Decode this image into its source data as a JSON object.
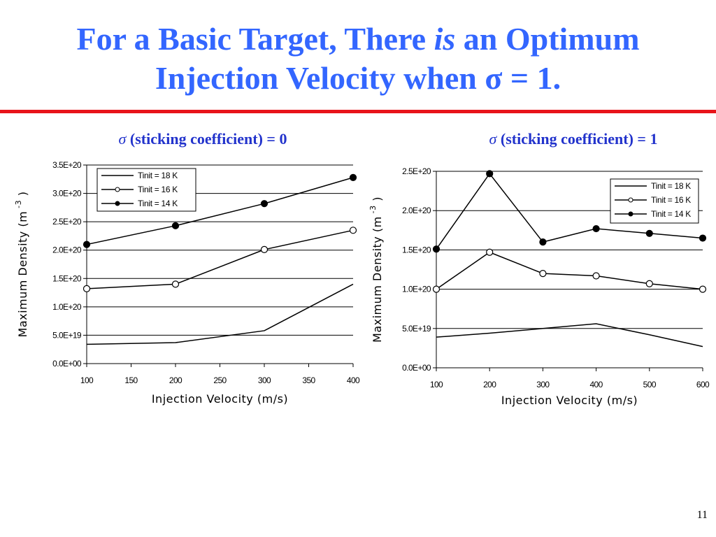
{
  "slide": {
    "title_line1_part1": "For a Basic Target, There ",
    "title_line1_italic": "is",
    "title_line1_part2": " an Optimum",
    "title_line2": "Injection Velocity when σ = 1.",
    "page_number": "11",
    "colors": {
      "title": "#3366ff",
      "divider": "#e8141a",
      "subtitle": "#2233cc"
    }
  },
  "charts": {
    "left": {
      "subtitle_symbol": "σ",
      "subtitle_text": " (sticking coefficient) = 0"
    },
    "right": {
      "subtitle_symbol": "σ",
      "subtitle_text": " (sticking coefficient) = 1"
    }
  },
  "chart_data": [
    {
      "type": "line",
      "title": "σ (sticking coefficient) = 0",
      "xlabel": "Injection Velocity (m/s)",
      "ylabel": "Maximum Density (m",
      "ylabel_superscript": "-3",
      "ylabel_suffix": ")",
      "xlim": [
        100,
        400
      ],
      "ylim": [
        0,
        3.5e+20
      ],
      "xticks": [
        100,
        150,
        200,
        250,
        300,
        350,
        400
      ],
      "xtick_labels": [
        "100",
        "150",
        "200",
        "250",
        "300",
        "350",
        "400"
      ],
      "yticks": [
        0,
        5e+19,
        1e+20,
        1.5e+20,
        2e+20,
        2.5e+20,
        3e+20,
        3.5e+20
      ],
      "ytick_labels": [
        "0.0E+00",
        "5.0E+19",
        "1.0E+20",
        "1.5E+20",
        "2.0E+20",
        "2.5E+20",
        "3.0E+20",
        "3.5E+20"
      ],
      "grid": "horizontal",
      "legend_position": "top-left",
      "series": [
        {
          "name": "Tinit = 18 K",
          "marker": "none",
          "x": [
            100,
            200,
            300,
            400
          ],
          "values": [
            3.4e+19,
            3.7e+19,
            5.8e+19,
            1.4e+20
          ]
        },
        {
          "name": "Tinit = 16 K",
          "marker": "open",
          "x": [
            100,
            200,
            300,
            400
          ],
          "values": [
            1.32e+20,
            1.4e+20,
            2.01e+20,
            2.35e+20
          ]
        },
        {
          "name": "Tinit = 14 K",
          "marker": "filled",
          "x": [
            100,
            200,
            300,
            400
          ],
          "values": [
            2.1e+20,
            2.43e+20,
            2.82e+20,
            3.28e+20
          ]
        }
      ]
    },
    {
      "type": "line",
      "title": "σ (sticking coefficient) = 1",
      "xlabel": "Injection Velocity (m/s)",
      "ylabel": "Maximum Density (m",
      "ylabel_superscript": "-3",
      "ylabel_suffix": ")",
      "xlim": [
        100,
        600
      ],
      "ylim": [
        0,
        2.5e+20
      ],
      "xticks": [
        100,
        200,
        300,
        400,
        500,
        600
      ],
      "xtick_labels": [
        "100",
        "200",
        "300",
        "400",
        "500",
        "600"
      ],
      "yticks": [
        0,
        5e+19,
        1e+20,
        1.5e+20,
        2e+20,
        2.5e+20
      ],
      "ytick_labels": [
        "0.0E+00",
        "5.0E+19",
        "1.0E+20",
        "1.5E+20",
        "2.0E+20",
        "2.5E+20"
      ],
      "grid": "horizontal",
      "legend_position": "top-right",
      "series": [
        {
          "name": "Tinit = 18 K",
          "marker": "none",
          "x": [
            100,
            200,
            300,
            400,
            500,
            600
          ],
          "values": [
            3.9e+19,
            4.4e+19,
            5e+19,
            5.6e+19,
            4.2e+19,
            2.7e+19
          ]
        },
        {
          "name": "Tinit = 16 K",
          "marker": "open",
          "x": [
            100,
            200,
            300,
            400,
            500,
            600
          ],
          "values": [
            1e+20,
            1.47e+20,
            1.2e+20,
            1.17e+20,
            1.07e+20,
            1e+20
          ]
        },
        {
          "name": "Tinit = 14 K",
          "marker": "filled",
          "x": [
            100,
            200,
            300,
            400,
            500,
            600
          ],
          "values": [
            1.51e+20,
            2.47e+20,
            1.6e+20,
            1.77e+20,
            1.71e+20,
            1.65e+20
          ]
        }
      ]
    }
  ]
}
